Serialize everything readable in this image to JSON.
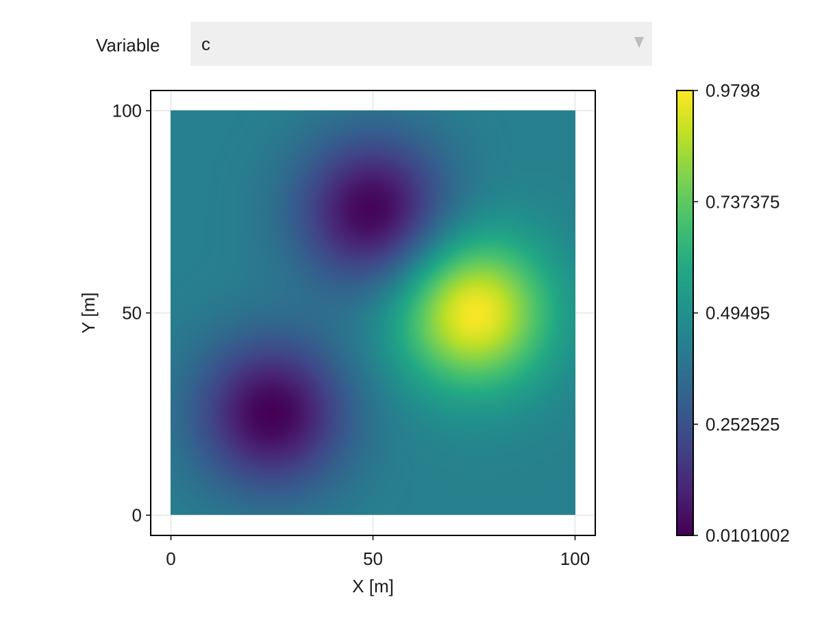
{
  "control": {
    "label": "Variable",
    "selected": "c"
  },
  "chart_data": {
    "type": "heatmap",
    "xlabel": "X [m]",
    "ylabel": "Y [m]",
    "xlim": [
      -5,
      105
    ],
    "ylim": [
      -5,
      105
    ],
    "x_range": [
      0,
      100
    ],
    "y_range": [
      0,
      100
    ],
    "grid": true,
    "xticks": [
      0,
      50,
      100
    ],
    "yticks": [
      0,
      50,
      100
    ],
    "xtick_labels": [
      "0",
      "50",
      "100"
    ],
    "ytick_labels": [
      "0",
      "50",
      "100"
    ],
    "colormap": "viridis",
    "colorbar": {
      "min": 0.0101002,
      "max": 0.9798,
      "ticks": [
        0.0101002,
        0.252525,
        0.49495,
        0.737375,
        0.9798
      ],
      "tick_labels": [
        "0.0101002",
        "0.252525",
        "0.49495",
        "0.737375",
        "0.9798"
      ]
    },
    "background_value": 0.43,
    "features": [
      {
        "kind": "peak",
        "x": 75,
        "y": 50,
        "value": 0.9798,
        "spread": 13
      },
      {
        "kind": "trough",
        "x": 50,
        "y": 75,
        "value": 0.0101002,
        "spread": 13
      },
      {
        "kind": "trough",
        "x": 25,
        "y": 25,
        "value": 0.0101002,
        "spread": 13
      }
    ]
  }
}
